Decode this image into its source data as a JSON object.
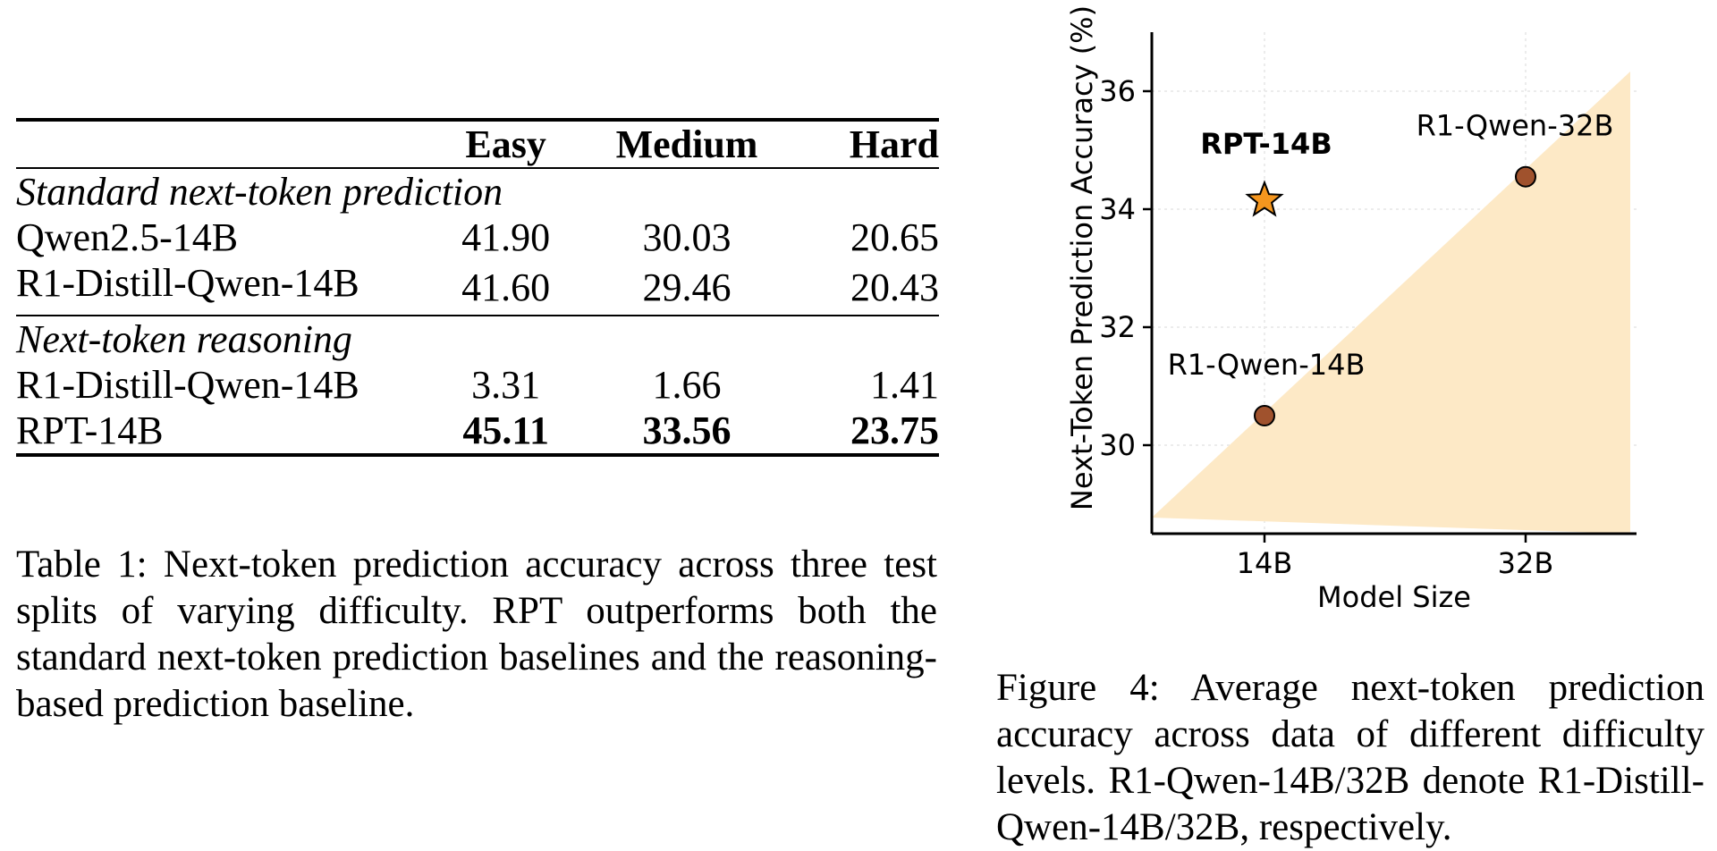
{
  "table": {
    "headers": [
      "",
      "Easy",
      "Medium",
      "Hard"
    ],
    "sections": [
      {
        "title": "Standard next-token prediction",
        "rows": [
          {
            "model": "Qwen2.5-14B",
            "easy": "41.90",
            "medium": "30.03",
            "hard": "20.65",
            "bold": false
          },
          {
            "model": "R1-Distill-Qwen-14B",
            "easy": "41.60",
            "medium": "29.46",
            "hard": "20.43",
            "bold": false
          }
        ]
      },
      {
        "title": "Next-token reasoning",
        "rows": [
          {
            "model": "R1-Distill-Qwen-14B",
            "easy": "3.31",
            "medium": "1.66",
            "hard": "1.41",
            "bold": false
          },
          {
            "model": "RPT-14B",
            "easy": "45.11",
            "medium": "33.56",
            "hard": "23.75",
            "bold": true
          }
        ]
      }
    ],
    "caption": "Table 1: Next-token prediction accuracy across three test splits of varying difficulty. RPT outperforms both the standard next-token prediction baselines and the reasoning-based prediction baseline."
  },
  "figure": {
    "caption": "Figure 4: Average next-token prediction accuracy across data of different difficulty levels. R1-Qwen-14B/32B denote R1-Distill-Qwen-14B/32B, respectively."
  },
  "chart_data": {
    "type": "scatter",
    "xlabel": "Model Size",
    "ylabel": "Next-Token Prediction Accuracy (%)",
    "categories": [
      "14B",
      "32B"
    ],
    "ylim": [
      28.5,
      37.0
    ],
    "yticks": [
      30,
      32,
      34,
      36
    ],
    "points": [
      {
        "name": "RPT-14B",
        "x": "14B",
        "y": 34.15,
        "marker": "star",
        "color": "#f5961e",
        "bold": true
      },
      {
        "name": "R1-Qwen-14B",
        "x": "14B",
        "y": 30.5,
        "marker": "circle",
        "color": "#a0522d",
        "bold": false
      },
      {
        "name": "R1-Qwen-32B",
        "x": "32B",
        "y": 34.55,
        "marker": "circle",
        "color": "#a0522d",
        "bold": false
      }
    ],
    "shaded_region_color": "#fde9c6",
    "grid": true
  }
}
